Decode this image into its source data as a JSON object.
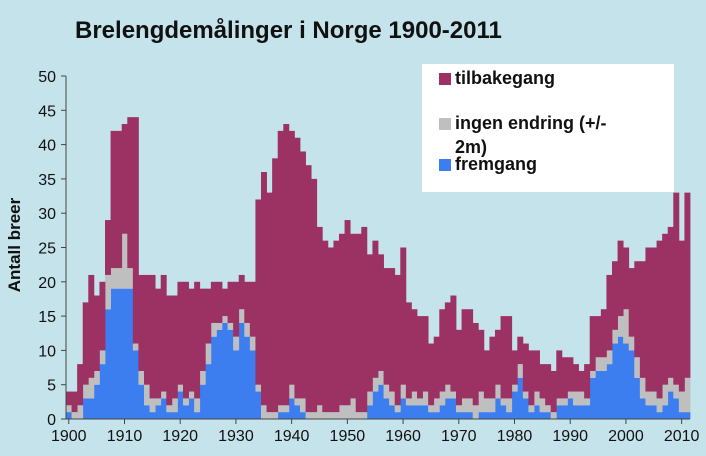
{
  "colors": {
    "background": "#c5e3ea",
    "tilbakegang": "#9b3263",
    "ingen_endring": "#bfbfbf",
    "fremgang": "#3c7df0"
  },
  "chart_data": {
    "type": "bar",
    "stacked": true,
    "title": "Brelengdemålinger i Norge 1900-2011",
    "xlabel": "",
    "ylabel": "Antall breer",
    "ylim": [
      0,
      50
    ],
    "yticks": [
      0,
      5,
      10,
      15,
      20,
      25,
      30,
      35,
      40,
      45,
      50
    ],
    "xticks": [
      1900,
      1910,
      1920,
      1930,
      1940,
      1950,
      1960,
      1970,
      1980,
      1990,
      2000,
      2010
    ],
    "grid": false,
    "legend_position": "top-right",
    "x": [
      1900,
      1901,
      1902,
      1903,
      1904,
      1905,
      1906,
      1907,
      1908,
      1909,
      1910,
      1911,
      1912,
      1913,
      1914,
      1915,
      1916,
      1917,
      1918,
      1919,
      1920,
      1921,
      1922,
      1923,
      1924,
      1925,
      1926,
      1927,
      1928,
      1929,
      1930,
      1931,
      1932,
      1933,
      1934,
      1935,
      1936,
      1937,
      1938,
      1939,
      1940,
      1941,
      1942,
      1943,
      1944,
      1945,
      1946,
      1947,
      1948,
      1949,
      1950,
      1951,
      1952,
      1953,
      1954,
      1955,
      1956,
      1957,
      1958,
      1959,
      1960,
      1961,
      1962,
      1963,
      1964,
      1965,
      1966,
      1967,
      1968,
      1969,
      1970,
      1971,
      1972,
      1973,
      1974,
      1975,
      1976,
      1977,
      1978,
      1979,
      1980,
      1981,
      1982,
      1983,
      1984,
      1985,
      1986,
      1987,
      1988,
      1989,
      1990,
      1991,
      1992,
      1993,
      1994,
      1995,
      1996,
      1997,
      1998,
      1999,
      2000,
      2001,
      2002,
      2003,
      2004,
      2005,
      2006,
      2007,
      2008,
      2009,
      2010,
      2011
    ],
    "series": [
      {
        "name": "fremgang",
        "color": "#3c7df0",
        "values": [
          1,
          0,
          0,
          3,
          3,
          5,
          8,
          16,
          19,
          19,
          19,
          19,
          10,
          5,
          2,
          1,
          2,
          3,
          1,
          1,
          4,
          2,
          3,
          1,
          5,
          8,
          12,
          13,
          14,
          13,
          10,
          14,
          12,
          10,
          4,
          0,
          0,
          0,
          1,
          1,
          3,
          2,
          1,
          0,
          0,
          0,
          0,
          0,
          0,
          0,
          0,
          0,
          0,
          0,
          2,
          4,
          5,
          3,
          2,
          1,
          3,
          2,
          2,
          2,
          2,
          1,
          1,
          2,
          3,
          3,
          1,
          1,
          1,
          0,
          1,
          1,
          1,
          3,
          2,
          1,
          4,
          6,
          3,
          1,
          2,
          1,
          1,
          0,
          2,
          2,
          3,
          2,
          2,
          2,
          6,
          7,
          7,
          8,
          11,
          12,
          11,
          10,
          6,
          3,
          2,
          2,
          1,
          2,
          4,
          3,
          1,
          1
        ]
      },
      {
        "name": "ingen endring (+/-2m)",
        "color": "#bfbfbf",
        "values": [
          1,
          1,
          2,
          2,
          3,
          2,
          2,
          5,
          3,
          3,
          8,
          3,
          1,
          2,
          3,
          2,
          1,
          1,
          1,
          2,
          1,
          1,
          1,
          2,
          2,
          3,
          2,
          1,
          1,
          1,
          2,
          2,
          2,
          2,
          1,
          2,
          1,
          1,
          1,
          1,
          2,
          1,
          2,
          1,
          1,
          2,
          1,
          1,
          1,
          2,
          2,
          3,
          1,
          1,
          2,
          2,
          2,
          2,
          2,
          1,
          2,
          1,
          2,
          1,
          2,
          1,
          2,
          2,
          2,
          1,
          1,
          2,
          2,
          2,
          3,
          2,
          2,
          2,
          1,
          2,
          1,
          2,
          1,
          1,
          2,
          2,
          1,
          1,
          1,
          1,
          1,
          2,
          2,
          1,
          1,
          2,
          2,
          2,
          2,
          3,
          5,
          2,
          3,
          3,
          2,
          2,
          2,
          3,
          2,
          2,
          3,
          5
        ]
      },
      {
        "name": "tilbakegang",
        "color": "#9b3263",
        "values": [
          2,
          3,
          6,
          12,
          15,
          11,
          10,
          8,
          20,
          20,
          16,
          22,
          33,
          14,
          16,
          18,
          16,
          17,
          16,
          15,
          15,
          17,
          15,
          17,
          12,
          8,
          6,
          6,
          4,
          6,
          8,
          5,
          6,
          8,
          27,
          34,
          32,
          37,
          40,
          41,
          37,
          38,
          36,
          36,
          34,
          26,
          25,
          24,
          25,
          25,
          27,
          24,
          26,
          27,
          20,
          20,
          17,
          17,
          18,
          19,
          20,
          14,
          12,
          12,
          11,
          9,
          9,
          12,
          12,
          14,
          11,
          13,
          13,
          12,
          9,
          7,
          9,
          8,
          12,
          12,
          5,
          4,
          7,
          8,
          6,
          5,
          6,
          6,
          7,
          6,
          5,
          4,
          3,
          5,
          8,
          6,
          7,
          11,
          10,
          11,
          9,
          10,
          14,
          17,
          21,
          21,
          23,
          22,
          22,
          28,
          22,
          27
        ]
      }
    ],
    "legend": [
      {
        "label_line1": "tilbakegang",
        "label_line2": "",
        "color": "#9b3263"
      },
      {
        "label_line1": "ingen endring (+/-",
        "label_line2": "2m)",
        "color": "#bfbfbf"
      },
      {
        "label_line1": "fremgang",
        "label_line2": "",
        "color": "#3c7df0"
      }
    ]
  }
}
